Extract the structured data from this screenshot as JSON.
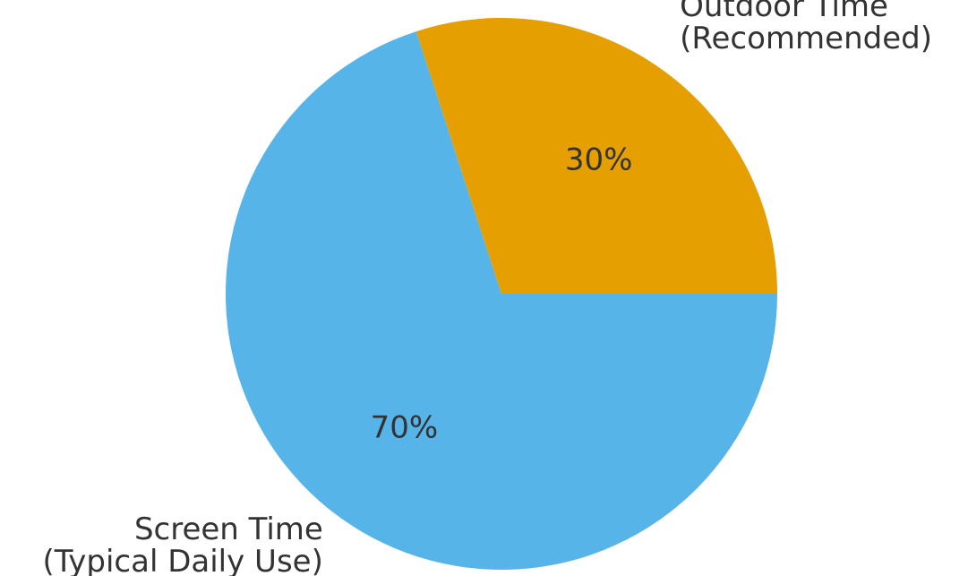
{
  "chart_data": {
    "type": "pie",
    "title": "",
    "slices": [
      {
        "label_lines": [
          "Screen Time",
          "(Typical Daily Use)"
        ],
        "value": 70,
        "percent_label": "70%",
        "color": "#56B4E9"
      },
      {
        "label_lines": [
          "Outdoor Time",
          "(Recommended)"
        ],
        "value": 30,
        "percent_label": "30%",
        "color": "#E69F00"
      }
    ],
    "start_angle_deg": 0,
    "direction": "clockwise",
    "legend": "none"
  }
}
